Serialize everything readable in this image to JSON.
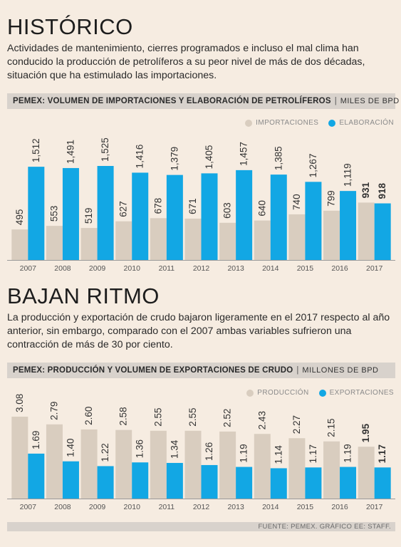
{
  "sections": [
    {
      "title": "HISTÓRICO",
      "description": "Actividades de mantenimiento, cierres programados e incluso el mal clima han conducido la producción de petrolíferos a su peor nivel de más de dos décadas, situación que ha estimulado las importaciones.",
      "header_bold": "PEMEX: VOLUMEN DE IMPORTACIONES Y ELABORACIÓN DE PETROLÍFEROS",
      "header_unit": "MILES DE BPD"
    },
    {
      "title": "BAJAN RITMO",
      "description": "La producción y exportación de crudo bajaron ligeramente en el 2017 respecto al año anterior, sin embargo, comparado con el 2007 ambas variables sufrieron una contracción de más de 30 por ciento.",
      "header_bold": "PEMEX: PRODUCCIÓN Y VOLUMEN DE EXPORTACIONES DE CRUDO",
      "header_unit": "MILLONES DE BPD"
    }
  ],
  "colors": {
    "beige": "#d9cdbf",
    "blue": "#12a7e4"
  },
  "chart_data": [
    {
      "type": "bar",
      "categories": [
        "2007",
        "2008",
        "2009",
        "2010",
        "2011",
        "2012",
        "2013",
        "2014",
        "2015",
        "2016",
        "2017"
      ],
      "series": [
        {
          "name": "IMPORTACIONES",
          "values": [
            495,
            553,
            519,
            627,
            678,
            671,
            603,
            640,
            740,
            799,
            931
          ],
          "labels": [
            "495",
            "553",
            "519",
            "627",
            "678",
            "671",
            "603",
            "640",
            "740",
            "799",
            "931"
          ]
        },
        {
          "name": "ELABORACIÓN",
          "values": [
            1512,
            1491,
            1525,
            1416,
            1379,
            1405,
            1457,
            1385,
            1267,
            1119,
            918
          ],
          "labels": [
            "1,512",
            "1,491",
            "1,525",
            "1,416",
            "1,379",
            "1,405",
            "1,457",
            "1,385",
            "1,267",
            "1,119",
            "918"
          ]
        }
      ],
      "ylim": [
        0,
        1525
      ],
      "legend": "top-right"
    },
    {
      "type": "bar",
      "categories": [
        "2007",
        "2008",
        "2009",
        "2010",
        "2011",
        "2012",
        "2013",
        "2014",
        "2015",
        "2016",
        "2017"
      ],
      "series": [
        {
          "name": "PRODUCCIÓN",
          "values": [
            3.08,
            2.79,
            2.6,
            2.58,
            2.55,
            2.55,
            2.52,
            2.43,
            2.27,
            2.15,
            1.95
          ],
          "labels": [
            "3.08",
            "2.79",
            "2.60",
            "2.58",
            "2.55",
            "2.55",
            "2.52",
            "2.43",
            "2.27",
            "2.15",
            "1.95"
          ]
        },
        {
          "name": "EXPORTACIONES",
          "values": [
            1.69,
            1.4,
            1.22,
            1.36,
            1.34,
            1.26,
            1.19,
            1.14,
            1.17,
            1.19,
            1.17
          ],
          "labels": [
            "1.69",
            "1.40",
            "1.22",
            "1.36",
            "1.34",
            "1.26",
            "1.19",
            "1.14",
            "1.17",
            "1.19",
            "1.17"
          ]
        }
      ],
      "ylim": [
        0,
        3.08
      ],
      "legend": "top-right"
    }
  ],
  "footer": "FUENTE: PEMEX. GRÁFICO EE: STAFF."
}
